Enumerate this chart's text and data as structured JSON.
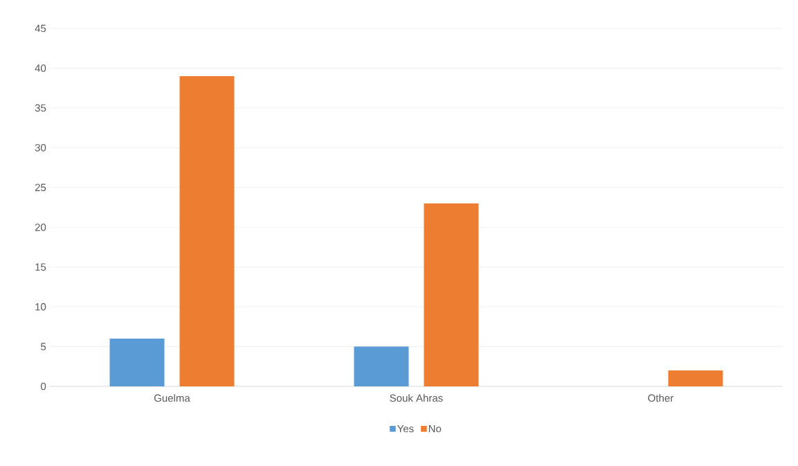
{
  "chart_data": {
    "type": "bar",
    "categories": [
      "Guelma",
      "Souk Ahras",
      "Other"
    ],
    "series": [
      {
        "name": "Yes",
        "color": "#5b9bd5",
        "values": [
          6,
          5,
          0
        ]
      },
      {
        "name": "No",
        "color": "#ed7d31",
        "values": [
          39,
          23,
          2
        ]
      }
    ],
    "ylim": [
      0,
      45
    ],
    "yticks": [
      0,
      5,
      10,
      15,
      20,
      25,
      30,
      35,
      40,
      45
    ],
    "grid": "y",
    "legend": "bottom"
  }
}
